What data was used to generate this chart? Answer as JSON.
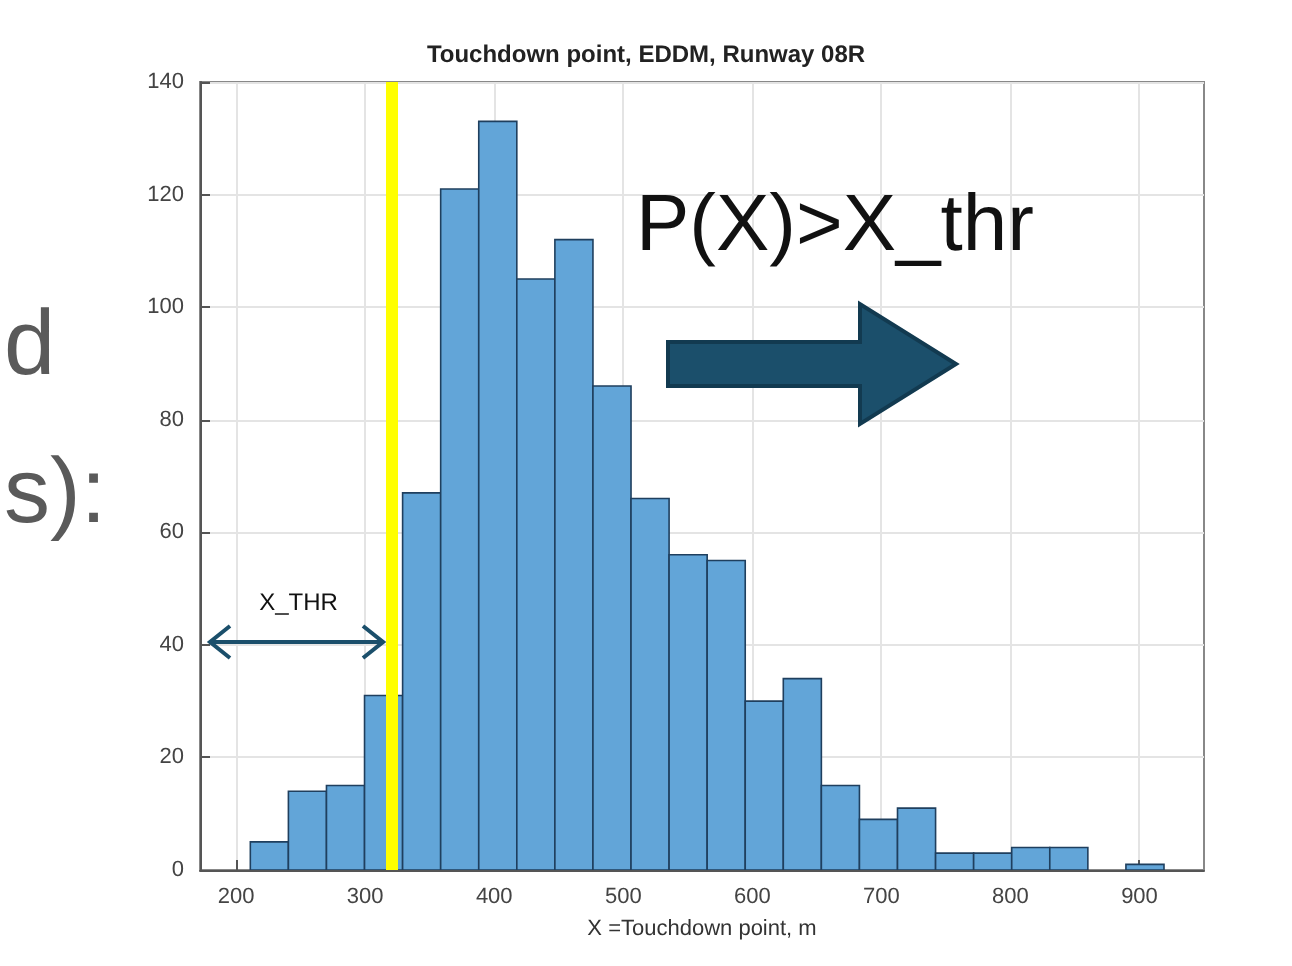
{
  "chart_data": {
    "type": "histogram",
    "title": "Touchdown point, EDDM, Runway 08R",
    "xlabel": "X =Touchdown point, m",
    "bins": [
      211,
      240.5,
      270,
      299.5,
      329,
      358.5,
      388,
      417.5,
      447,
      476.5,
      506,
      535.5,
      565,
      594.5,
      624,
      653.5,
      683,
      712.5,
      742,
      771.5,
      801,
      830.5,
      860,
      889.5,
      919
    ],
    "values": [
      5,
      14,
      15,
      31,
      67,
      121,
      133,
      105,
      112,
      86,
      66,
      56,
      55,
      30,
      34,
      15,
      9,
      11,
      3,
      3,
      4,
      4,
      0,
      1
    ],
    "color": "#62a5d8",
    "xlim": [
      172,
      950
    ],
    "xticks": [
      200,
      300,
      400,
      500,
      600,
      700,
      800,
      900
    ],
    "ylim": [
      0,
      140
    ],
    "yticks": [
      0,
      20,
      40,
      60,
      80,
      100,
      120,
      140
    ],
    "grid": true,
    "ref_lines": [
      {
        "axis": "x",
        "value": 320,
        "label": "X_THR",
        "color": "#ffff00"
      }
    ],
    "annotations": [
      "d",
      "s):",
      "P(X)>X_thr"
    ]
  }
}
